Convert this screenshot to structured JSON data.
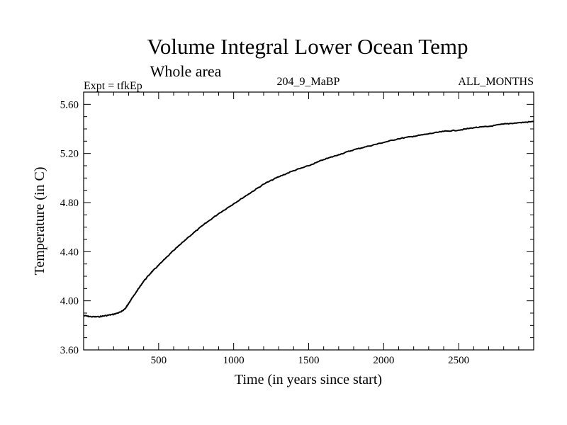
{
  "chart_data": {
    "type": "line",
    "title": "Volume Integral Lower Ocean Temp",
    "subtitle": "Whole area",
    "header_left": "Expt = tfkEp",
    "header_center": "204_9_MaBP",
    "header_right": "ALL_MONTHS",
    "xlabel": "Time (in years since start)",
    "ylabel": "Temperature (in C)",
    "xlim": [
      0,
      3000
    ],
    "ylim": [
      3.6,
      5.7
    ],
    "x_ticks": [
      500,
      1000,
      1500,
      2000,
      2500
    ],
    "x_tick_labels": [
      "500",
      "1000",
      "1500",
      "2000",
      "2500"
    ],
    "y_ticks": [
      3.6,
      4.0,
      4.4,
      4.8,
      5.2,
      5.6
    ],
    "y_tick_labels": [
      "3.60",
      "4.00",
      "4.40",
      "4.80",
      "5.20",
      "5.60"
    ],
    "grid": false,
    "series": [
      {
        "x": [
          0,
          50,
          100,
          150,
          200,
          250,
          280,
          300,
          350,
          400,
          450,
          500,
          600,
          700,
          800,
          900,
          1000,
          1100,
          1200,
          1300,
          1400,
          1500,
          1600,
          1700,
          1800,
          1900,
          2000,
          2100,
          2200,
          2300,
          2400,
          2500,
          2600,
          2700,
          2800,
          2900,
          3000
        ],
        "y": [
          3.88,
          3.87,
          3.87,
          3.88,
          3.89,
          3.91,
          3.94,
          3.98,
          4.07,
          4.16,
          4.23,
          4.29,
          4.41,
          4.52,
          4.62,
          4.71,
          4.79,
          4.87,
          4.95,
          5.01,
          5.06,
          5.1,
          5.15,
          5.19,
          5.23,
          5.26,
          5.29,
          5.32,
          5.34,
          5.36,
          5.38,
          5.39,
          5.41,
          5.42,
          5.44,
          5.45,
          5.46
        ]
      }
    ]
  }
}
